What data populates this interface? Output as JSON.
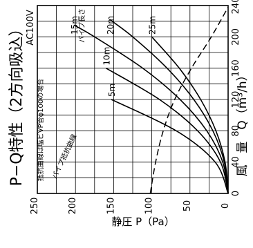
{
  "chart_data": {
    "type": "line",
    "title": "P−Q特性（2方向吸込）",
    "subtitle": "AC100V",
    "xlabel": "風　量　Q（m³/h）",
    "ylabel": "静圧 P（Pa）",
    "xlim": [
      0,
      240
    ],
    "ylim": [
      0,
      250
    ],
    "x_ticks": [
      "0",
      "40",
      "80",
      "120",
      "160",
      "200",
      "240"
    ],
    "y_ticks": [
      "0",
      "50",
      "100",
      "150",
      "200",
      "250"
    ],
    "x_tick_values": [
      0,
      40,
      80,
      120,
      160,
      200,
      240
    ],
    "y_tick_values": [
      0,
      50,
      100,
      150,
      200,
      250
    ],
    "grid": true,
    "series_header": "パイプ長さ",
    "series": [
      {
        "name": "25m",
        "points": [
          [
            0,
            0
          ],
          [
            40,
            4
          ],
          [
            80,
            16
          ],
          [
            120,
            36
          ],
          [
            160,
            64
          ],
          [
            200,
            100
          ]
        ]
      },
      {
        "name": "20m",
        "points": [
          [
            0,
            0
          ],
          [
            40,
            5
          ],
          [
            80,
            20
          ],
          [
            120,
            45
          ],
          [
            160,
            80
          ],
          [
            200,
            125
          ],
          [
            222,
            155
          ]
        ]
      },
      {
        "name": "15m",
        "points": [
          [
            0,
            0
          ],
          [
            40,
            7
          ],
          [
            80,
            28
          ],
          [
            120,
            63
          ],
          [
            160,
            112
          ],
          [
            200,
            175
          ],
          [
            215,
            202
          ]
        ]
      },
      {
        "name": "10m",
        "points": [
          [
            0,
            0
          ],
          [
            40,
            10
          ],
          [
            80,
            40
          ],
          [
            120,
            90
          ],
          [
            160,
            160
          ],
          [
            202,
            255
          ]
        ]
      },
      {
        "name": "5m",
        "points": [
          [
            0,
            0
          ],
          [
            40,
            17
          ],
          [
            80,
            68
          ],
          [
            120,
            153
          ],
          [
            155,
            255
          ]
        ]
      }
    ],
    "pq_curve": {
      "style": "dashed",
      "points": [
        [
          0,
          102
        ],
        [
          40,
          95
        ],
        [
          80,
          85
        ],
        [
          120,
          70
        ],
        [
          160,
          48
        ],
        [
          200,
          22
        ],
        [
          238,
          0
        ]
      ]
    },
    "annotations": [
      "抵抗曲線は塩ビVP管φ100の場合",
      "パイプ抵抗曲線"
    ]
  }
}
